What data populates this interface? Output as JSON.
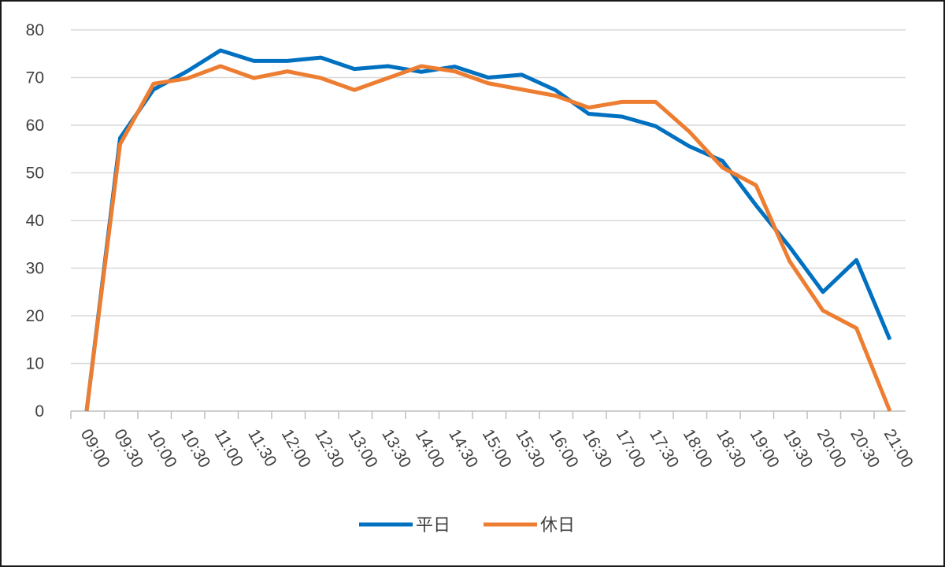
{
  "chart_data": {
    "type": "line",
    "title": "",
    "xlabel": "",
    "ylabel": "",
    "categories": [
      "09:00",
      "09:30",
      "10:00",
      "10:30",
      "11:00",
      "11:30",
      "12:00",
      "12:30",
      "13:00",
      "13:30",
      "14:00",
      "14:30",
      "15:00",
      "15:30",
      "16:00",
      "16:30",
      "17:00",
      "17:30",
      "18:00",
      "18:30",
      "19:00",
      "19:30",
      "20:00",
      "20:30",
      "21:00"
    ],
    "ylim": [
      0,
      80
    ],
    "yticks": [
      0,
      10,
      20,
      30,
      40,
      50,
      60,
      70,
      80
    ],
    "grid": true,
    "legend_position": "bottom",
    "series": [
      {
        "name": "平日",
        "color": "#0070C0",
        "values": [
          0,
          57.3,
          67.5,
          71.3,
          75.7,
          73.5,
          73.5,
          74.2,
          71.8,
          72.4,
          71.2,
          72.3,
          70.0,
          70.6,
          67.4,
          62.4,
          61.8,
          59.8,
          55.6,
          52.5,
          43.2,
          34.5,
          25.0,
          31.7,
          15.0
        ]
      },
      {
        "name": "休日",
        "color": "#ED7D31",
        "values": [
          0,
          56.0,
          68.7,
          69.8,
          72.4,
          69.9,
          71.3,
          69.9,
          67.4,
          69.9,
          72.4,
          71.3,
          68.8,
          67.5,
          66.2,
          63.7,
          64.9,
          64.9,
          58.7,
          51.1,
          47.4,
          31.5,
          21.1,
          17.4,
          0
        ]
      }
    ]
  }
}
